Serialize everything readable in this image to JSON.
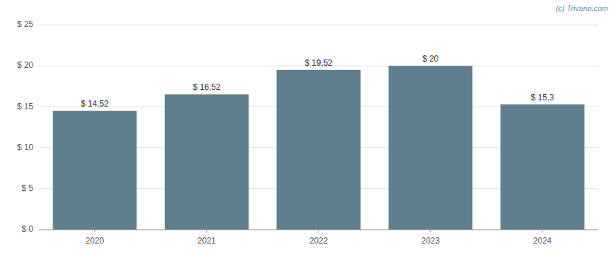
{
  "chart_data": {
    "type": "bar",
    "categories": [
      "2020",
      "2021",
      "2022",
      "2023",
      "2024"
    ],
    "values": [
      14.52,
      16.52,
      19.52,
      20.0,
      15.3
    ],
    "value_labels": [
      "$ 14,52",
      "$ 16,52",
      "$ 19,52",
      "$ 20",
      "$ 15,3"
    ],
    "color": "#5f7f8f",
    "ylim": [
      0,
      25
    ],
    "yticks": [
      {
        "value": 0,
        "label": "$ 0"
      },
      {
        "value": 5,
        "label": "$ 5"
      },
      {
        "value": 10,
        "label": "$ 10"
      },
      {
        "value": 15,
        "label": "$ 15"
      },
      {
        "value": 20,
        "label": "$ 20"
      },
      {
        "value": 25,
        "label": "$ 25"
      }
    ],
    "grid": true,
    "data_labels": true,
    "annotations": [
      "(c) Trivano.com"
    ]
  }
}
